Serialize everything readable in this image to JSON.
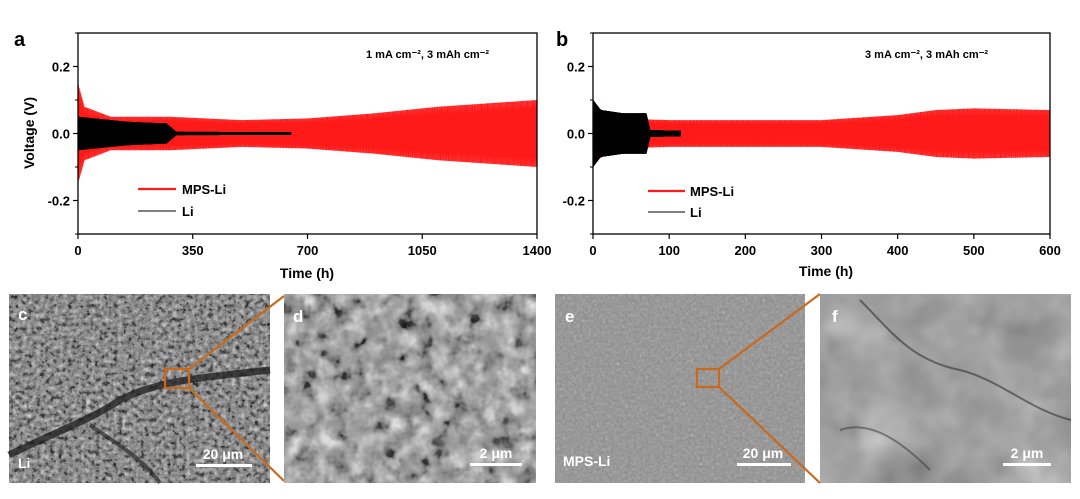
{
  "colors": {
    "mps_li": "#ff1a1a",
    "li": "#000000",
    "zoom_box": "#c8691c",
    "sem_gray": "#808080"
  },
  "panels": {
    "a": {
      "letter": "a"
    },
    "b": {
      "letter": "b"
    },
    "c": {
      "letter": "c",
      "sample": "Li",
      "scale": "20 μm"
    },
    "d": {
      "letter": "d",
      "scale": "2 μm"
    },
    "e": {
      "letter": "e",
      "sample": "MPS-Li",
      "scale": "20 μm"
    },
    "f": {
      "letter": "f",
      "scale": "2 μm"
    }
  },
  "chart_data": [
    {
      "type": "line",
      "panel": "a",
      "annotation": "1 mA cm⁻², 3 mAh cm⁻²",
      "xlabel": "Time (h)",
      "ylabel": "Voltage (V)",
      "xlim": [
        0,
        1400
      ],
      "ylim": [
        -0.3,
        0.3
      ],
      "xticks": [
        "0",
        "350",
        "700",
        "1050",
        "1400"
      ],
      "yticks": [
        "-0.2",
        "0.0",
        "0.2"
      ],
      "legend_position": "bottom-left",
      "series": [
        {
          "name": "MPS-Li",
          "x": [
            0,
            20,
            100,
            280,
            500,
            700,
            900,
            1100,
            1400
          ],
          "amplitude": [
            0.15,
            0.08,
            0.05,
            0.05,
            0.04,
            0.045,
            0.06,
            0.08,
            0.1
          ]
        },
        {
          "name": "Li",
          "x": [
            0,
            50,
            150,
            270,
            300,
            650
          ],
          "amplitude": [
            0.05,
            0.045,
            0.035,
            0.03,
            0.005,
            0.004
          ]
        }
      ]
    },
    {
      "type": "line",
      "panel": "b",
      "annotation": "3 mA cm⁻², 3 mAh cm⁻²",
      "xlabel": "Time (h)",
      "ylabel": "",
      "xlim": [
        0,
        600
      ],
      "ylim": [
        -0.3,
        0.3
      ],
      "xticks": [
        "0",
        "100",
        "200",
        "300",
        "400",
        "500",
        "600"
      ],
      "yticks": [
        "-0.2",
        "0.0",
        "0.2"
      ],
      "legend_position": "bottom-left",
      "series": [
        {
          "name": "MPS-Li",
          "x": [
            0,
            5,
            30,
            100,
            300,
            400,
            450,
            500,
            600
          ],
          "amplitude": [
            0.1,
            0.08,
            0.045,
            0.04,
            0.04,
            0.055,
            0.07,
            0.075,
            0.07
          ]
        },
        {
          "name": "Li",
          "x": [
            0,
            10,
            40,
            70,
            75,
            115
          ],
          "amplitude": [
            0.1,
            0.07,
            0.06,
            0.06,
            0.01,
            0.008
          ]
        }
      ]
    }
  ]
}
